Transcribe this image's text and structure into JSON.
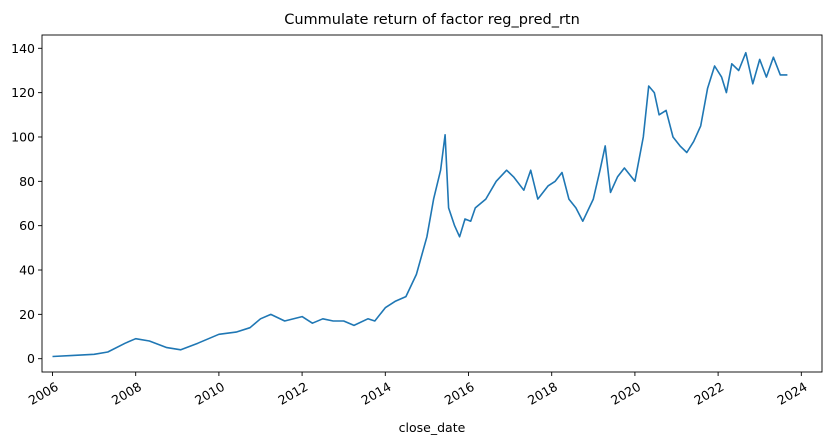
{
  "chart_data": {
    "type": "line",
    "title": "Cummulate return of factor reg_pred_rtn",
    "xlabel": "close_date",
    "ylabel": "",
    "xlim": [
      "2005-10-01",
      "2024-07-01"
    ],
    "ylim": [
      -6,
      146
    ],
    "grid": false,
    "x_ticks": [
      "2006",
      "2008",
      "2010",
      "2012",
      "2014",
      "2016",
      "2018",
      "2020",
      "2022",
      "2024"
    ],
    "y_ticks": [
      0,
      20,
      40,
      60,
      80,
      100,
      120,
      140
    ],
    "line_color": "#1f77b4",
    "series": [
      {
        "x": [
          "2006-01-01",
          "2006-07-01",
          "2007-01-01",
          "2007-05-01",
          "2007-10-01",
          "2008-01-01",
          "2008-05-01",
          "2008-10-01",
          "2009-02-01",
          "2009-07-01",
          "2010-01-01",
          "2010-06-01",
          "2010-10-01",
          "2011-01-01",
          "2011-04-01",
          "2011-08-01",
          "2012-01-01",
          "2012-04-01",
          "2012-07-01",
          "2012-10-01",
          "2013-01-01",
          "2013-04-01",
          "2013-08-01",
          "2013-10-01",
          "2014-01-01",
          "2014-04-01",
          "2014-07-01",
          "2014-10-01",
          "2015-01-01",
          "2015-03-01",
          "2015-05-01",
          "2015-06-10",
          "2015-07-10",
          "2015-09-01",
          "2015-10-15",
          "2015-12-01",
          "2016-01-20",
          "2016-03-01",
          "2016-06-01",
          "2016-09-01",
          "2016-12-01",
          "2017-02-01",
          "2017-05-01",
          "2017-07-01",
          "2017-09-01",
          "2017-12-01",
          "2018-02-01",
          "2018-04-01",
          "2018-06-01",
          "2018-08-01",
          "2018-10-01",
          "2019-01-01",
          "2019-03-01",
          "2019-04-15",
          "2019-06-01",
          "2019-08-01",
          "2019-10-01",
          "2020-01-01",
          "2020-03-15",
          "2020-05-01",
          "2020-06-20",
          "2020-08-01",
          "2020-10-01",
          "2020-12-01",
          "2021-02-01",
          "2021-04-01",
          "2021-06-01",
          "2021-08-01",
          "2021-10-01",
          "2021-12-01",
          "2022-02-01",
          "2022-03-15",
          "2022-05-01",
          "2022-07-01",
          "2022-09-01",
          "2022-11-01",
          "2023-01-01",
          "2023-03-01",
          "2023-05-01",
          "2023-07-01",
          "2023-09-01"
        ],
        "y": [
          1,
          1.5,
          2,
          3,
          7,
          9,
          8,
          5,
          4,
          7,
          11,
          12,
          14,
          18,
          20,
          17,
          19,
          16,
          18,
          17,
          17,
          15,
          18,
          17,
          23,
          26,
          28,
          38,
          55,
          72,
          85,
          101,
          68,
          60,
          55,
          63,
          62,
          68,
          72,
          80,
          85,
          82,
          76,
          85,
          72,
          78,
          80,
          84,
          72,
          68,
          62,
          72,
          85,
          96,
          75,
          82,
          86,
          80,
          100,
          123,
          120,
          110,
          112,
          100,
          96,
          93,
          98,
          105,
          122,
          132,
          127,
          120,
          133,
          130,
          138,
          124,
          135,
          127,
          136,
          128,
          128
        ]
      }
    ]
  }
}
